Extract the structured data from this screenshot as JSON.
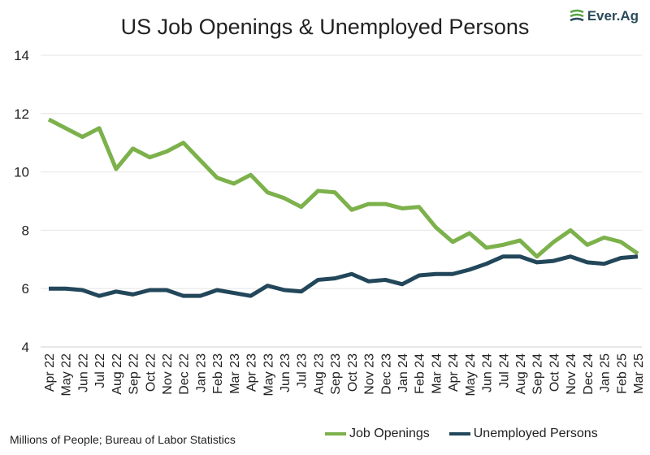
{
  "chart_data": {
    "type": "line",
    "title": "US Job Openings & Unemployed Persons",
    "note": "Millions of People; Bureau of Labor Statistics",
    "ylim": [
      4,
      14
    ],
    "yticks": [
      4,
      6,
      8,
      10,
      12,
      14
    ],
    "grid": true,
    "legend": "bottom-right",
    "categories": [
      "Apr 22",
      "May 22",
      "Jun 22",
      "Jul 22",
      "Aug 22",
      "Sep 22",
      "Oct 22",
      "Nov 22",
      "Dec 22",
      "Jan 23",
      "Feb 23",
      "Mar 23",
      "Apr 23",
      "May 23",
      "Jun 23",
      "Jul 23",
      "Aug 23",
      "Sep 23",
      "Oct 23",
      "Nov 23",
      "Dec 23",
      "Jan 24",
      "Feb 24",
      "Mar 24",
      "Apr 24",
      "May 24",
      "Jun 24",
      "Jul 24",
      "Aug 24",
      "Sep 24",
      "Oct 24",
      "Nov 24",
      "Dec 24",
      "Jan 25",
      "Feb 25",
      "Mar 25"
    ],
    "series": [
      {
        "name": "Job Openings",
        "color": "#7cb14b",
        "values": [
          11.8,
          11.5,
          11.2,
          11.5,
          10.1,
          10.8,
          10.5,
          10.7,
          11.0,
          10.4,
          9.8,
          9.6,
          9.9,
          9.3,
          9.1,
          8.8,
          9.35,
          9.3,
          8.7,
          8.9,
          8.9,
          8.75,
          8.8,
          8.1,
          7.6,
          7.9,
          7.4,
          7.5,
          7.65,
          7.1,
          7.6,
          8.0,
          7.5,
          7.75,
          7.6,
          7.2
        ]
      },
      {
        "name": "Unemployed Persons",
        "color": "#23475a",
        "values": [
          6.0,
          6.0,
          5.95,
          5.75,
          5.9,
          5.8,
          5.95,
          5.95,
          5.75,
          5.75,
          5.95,
          5.85,
          5.75,
          6.1,
          5.95,
          5.9,
          6.3,
          6.35,
          6.5,
          6.25,
          6.3,
          6.15,
          6.45,
          6.5,
          6.5,
          6.65,
          6.85,
          7.1,
          7.1,
          6.9,
          6.95,
          7.1,
          6.9,
          6.85,
          7.05,
          7.1
        ]
      }
    ]
  },
  "logo": {
    "text": "Ever.Ag",
    "color": "#5aa845"
  }
}
